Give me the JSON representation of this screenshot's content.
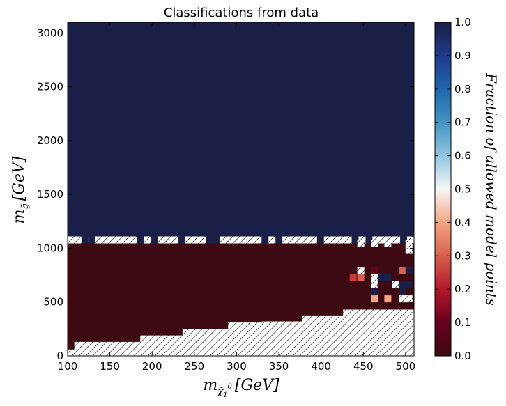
{
  "chart_data": {
    "type": "heatmap",
    "title": "Classifications from data",
    "xlabel": "m_{χ̃1^0} [GeV]",
    "ylabel": "m_{g̃} [GeV]",
    "xlabel_text": "m",
    "xlabel_sub": "χ̃",
    "xlabel_subsub": "1",
    "xlabel_sup": "0",
    "xlabel_unit": "[GeV]",
    "ylabel_text": "m",
    "ylabel_sub": "g̃",
    "ylabel_unit": "[GeV]",
    "xlim": [
      100,
      510
    ],
    "ylim": [
      0,
      3100
    ],
    "x_ticks": [
      100,
      150,
      200,
      250,
      300,
      350,
      400,
      450,
      500
    ],
    "y_ticks": [
      0,
      500,
      1000,
      1500,
      2000,
      2500,
      3000
    ],
    "colorbar": {
      "label": "Fraction of allowed model points",
      "range": [
        0.0,
        1.0
      ],
      "ticks": [
        "0.0",
        "0.1",
        "0.2",
        "0.3",
        "0.4",
        "0.5",
        "0.6",
        "0.7",
        "0.8",
        "0.9",
        "1.0"
      ],
      "colormap": [
        "#3d0912",
        "#67001f",
        "#b2182b",
        "#d6604d",
        "#f4a582",
        "#f7f7f7",
        "#92c5de",
        "#4393c3",
        "#2166ac",
        "#1f3a8a",
        "#1a1f47"
      ]
    },
    "bin_width_x": 8.2,
    "bin_width_y": 65,
    "regions": [
      {
        "description": "excluded region (all points not allowed)",
        "value": 0.0,
        "boundary_x": [
          100,
          108,
          160,
          186,
          236,
          290,
          330,
          378,
          426,
          510
        ],
        "boundary_y_low": [
          60,
          130,
          130,
          190,
          250,
          310,
          320,
          370,
          430,
          440
        ]
      },
      {
        "description": "allowed region",
        "value": 1.0,
        "y_from": 1110,
        "y_to": 3100
      }
    ],
    "transition_band": {
      "y_from": 1045,
      "y_to": 1110,
      "value": "no data (hatched)"
    },
    "mixed_cells": [
      {
        "x": 447,
        "y": 790,
        "value": 0.5
      },
      {
        "x": 463,
        "y": 790,
        "value": 0.1
      },
      {
        "x": 479,
        "y": 790,
        "value": 0.0
      },
      {
        "x": 496,
        "y": 790,
        "value": 0.3
      },
      {
        "x": 504,
        "y": 790,
        "value": 1.0
      },
      {
        "x": 438,
        "y": 725,
        "value": 0.25
      },
      {
        "x": 447,
        "y": 725,
        "value": 0.3
      },
      {
        "x": 463,
        "y": 725,
        "value": 0.5
      },
      {
        "x": 471,
        "y": 725,
        "value": 1.0
      },
      {
        "x": 479,
        "y": 725,
        "value": 1.0
      },
      {
        "x": 496,
        "y": 725,
        "value": 0.0
      },
      {
        "x": 463,
        "y": 660,
        "value": 0.5
      },
      {
        "x": 471,
        "y": 660,
        "value": 0.0
      },
      {
        "x": 488,
        "y": 660,
        "value": 0.5
      },
      {
        "x": 496,
        "y": 660,
        "value": 1.0
      },
      {
        "x": 504,
        "y": 660,
        "value": 1.0
      },
      {
        "x": 463,
        "y": 595,
        "value": 1.0
      },
      {
        "x": 471,
        "y": 595,
        "value": 0.0
      },
      {
        "x": 496,
        "y": 595,
        "value": 1.0
      },
      {
        "x": 463,
        "y": 530,
        "value": 0.4
      },
      {
        "x": 479,
        "y": 530,
        "value": 0.4
      },
      {
        "x": 496,
        "y": 530,
        "value": 0.5
      },
      {
        "x": 504,
        "y": 530,
        "value": 0.5
      },
      {
        "x": 447,
        "y": 1045,
        "value": 0.5
      },
      {
        "x": 463,
        "y": 1045,
        "value": 0.5
      },
      {
        "x": 479,
        "y": 1045,
        "value": 0.5
      },
      {
        "x": 504,
        "y": 1045,
        "value": 0.5
      },
      {
        "x": 504,
        "y": 980,
        "value": 0.5
      }
    ]
  }
}
